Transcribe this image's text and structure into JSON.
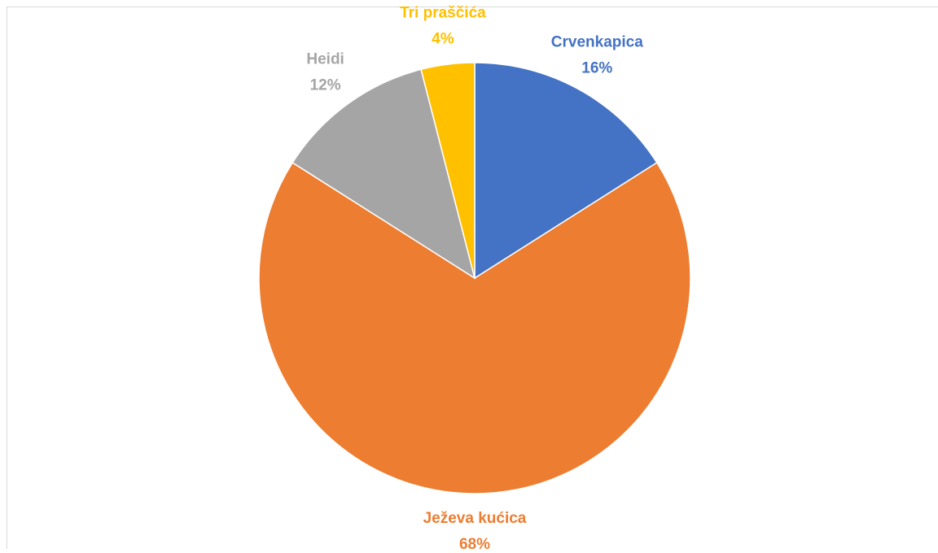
{
  "chart_data": {
    "type": "pie",
    "categories": [
      "Crvenkapica",
      "Ježeva kućica",
      "Heidi",
      "Tri praščića"
    ],
    "values": [
      16,
      68,
      12,
      4
    ],
    "value_labels": [
      "16%",
      "68%",
      "12%",
      "4%"
    ],
    "colors": [
      "#4472c4",
      "#ed7d31",
      "#a5a5a5",
      "#ffc000"
    ]
  }
}
